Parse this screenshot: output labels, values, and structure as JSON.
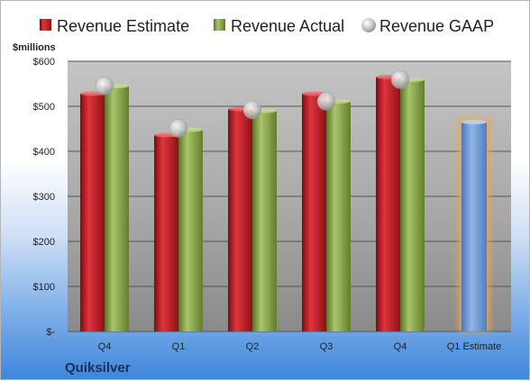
{
  "chart_data": {
    "type": "bar",
    "ylabel": "$millions",
    "company": "Quiksilver",
    "categories": [
      "Q4",
      "Q1",
      "Q2",
      "Q3",
      "Q4",
      "Q1 Estimate"
    ],
    "ylim": [
      0,
      600
    ],
    "yticks": [
      {
        "value": 0,
        "label": "$-"
      },
      {
        "value": 100,
        "label": "$100"
      },
      {
        "value": 200,
        "label": "$200"
      },
      {
        "value": 300,
        "label": "$300"
      },
      {
        "value": 400,
        "label": "$400"
      },
      {
        "value": 500,
        "label": "$500"
      },
      {
        "value": 600,
        "label": "$600"
      }
    ],
    "grid": true,
    "legend_position": "top",
    "series": [
      {
        "name": "Revenue Estimate",
        "type": "bar",
        "color": "#c0202a",
        "values": [
          528,
          436,
          494,
          528,
          565,
          null
        ]
      },
      {
        "name": "Revenue Actual",
        "type": "bar",
        "color": "#8aa84a",
        "values": [
          545,
          448,
          490,
          511,
          559,
          null
        ]
      },
      {
        "name": "Revenue GAAP",
        "type": "marker",
        "color": "#b8b8b8",
        "values": [
          545,
          451,
          492,
          511,
          559,
          null
        ]
      }
    ],
    "estimate_bar": {
      "category": "Q1 Estimate",
      "value": 465,
      "color": "#6f9fd8",
      "glow": "#f2a544"
    }
  }
}
